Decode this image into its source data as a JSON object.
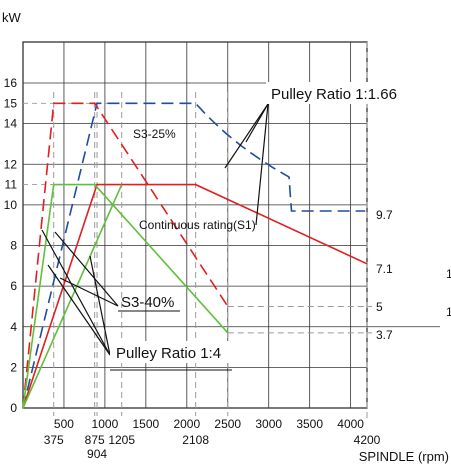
{
  "chart_data": {
    "type": "line",
    "ylabel": "kW",
    "xlabel": "SPINDLE (rpm)",
    "xlim": [
      0,
      4200
    ],
    "ylim": [
      0,
      16
    ],
    "grid": true,
    "x_ticks_top": [
      "500",
      "1000",
      "1500",
      "2000",
      "2500",
      "3000",
      "3500",
      "4000"
    ],
    "x_ticks_bottom": [
      "375",
      "875",
      "1205",
      "2108",
      "4200"
    ],
    "x_ticks_bottom2": [
      "904"
    ],
    "y_ticks": [
      "0",
      "2",
      "4",
      "6",
      "8",
      "10",
      "11",
      "12",
      "14",
      "15",
      "16"
    ],
    "series": [
      {
        "name": "Blue dashed",
        "color": "#1f4e9e",
        "dash": true,
        "x": [
          0,
          904,
          2108,
          2500,
          3000,
          3500,
          4000,
          4200
        ],
        "y": [
          0,
          15,
          15,
          13.2,
          11.4,
          10.3,
          9.8,
          9.7
        ]
      },
      {
        "name": "Red dashed",
        "color": "#e02020",
        "dash": true,
        "x": [
          0,
          375,
          875,
          2500
        ],
        "y": [
          0,
          15,
          15,
          5
        ]
      },
      {
        "name": "Red solid",
        "color": "#e02020",
        "dash": false,
        "x": [
          0,
          904,
          2108,
          4200
        ],
        "y": [
          0,
          11,
          11,
          7.1
        ]
      },
      {
        "name": "Green solid",
        "color": "#5fc03a",
        "dash": false,
        "x": [
          0,
          375,
          875,
          2500
        ],
        "y": [
          0,
          11,
          11,
          3.7
        ]
      },
      {
        "name": "Green solid 2",
        "color": "#5fc03a",
        "dash": false,
        "x": [
          0,
          1205
        ],
        "y": [
          0,
          11
        ]
      }
    ],
    "annotations": [
      "S3-25%",
      "Continuous rating(S1)",
      "S3-40%"
    ],
    "callouts": [
      "Pulley Ratio  1:1.66",
      "Pulley Ratio  1:4"
    ],
    "end_labels": [
      "9.7",
      "7.1",
      "5",
      "3.7"
    ],
    "margin_labels": [
      "1",
      "1"
    ]
  }
}
